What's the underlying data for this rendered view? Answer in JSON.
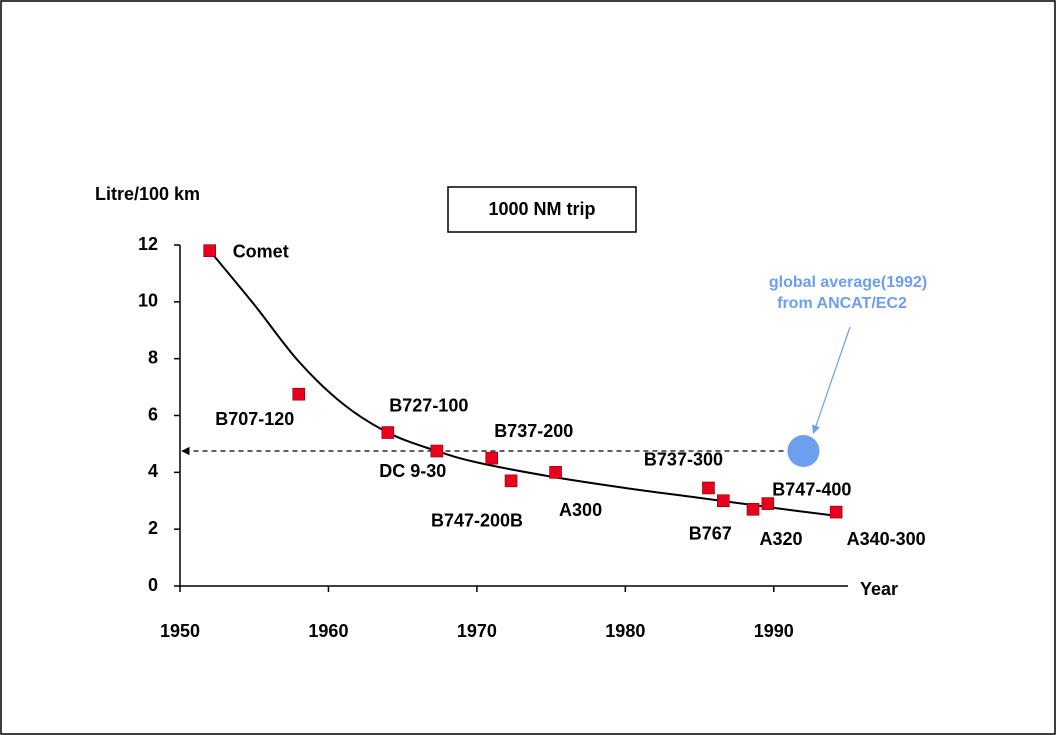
{
  "chart_data": {
    "type": "scatter",
    "y_label": "Litre/100 km",
    "x_label": "Year",
    "box_label": "1000 NM trip",
    "xlim": [
      1950,
      1995
    ],
    "xticks": [
      1950,
      1960,
      1970,
      1980,
      1990
    ],
    "ylim": [
      0,
      12
    ],
    "yticks": [
      0,
      2,
      4,
      6,
      8,
      10,
      12
    ],
    "points": {
      "color": "#e8001c",
      "labels": [
        "Comet",
        "B707-120",
        "B727-100",
        "DC 9-30",
        "B737-200",
        "B747-200B",
        "A300",
        "B737-300",
        "B767",
        "A320",
        "B747-400",
        "A340-300"
      ],
      "x": [
        1952,
        1958,
        1964,
        1967.3,
        1971,
        1972.3,
        1975.3,
        1985.6,
        1986.6,
        1988.6,
        1989.6,
        1994.2
      ],
      "y": [
        11.8,
        6.75,
        5.4,
        4.75,
        4.5,
        3.7,
        4.0,
        3.45,
        3.0,
        2.7,
        2.9,
        2.6
      ]
    },
    "trend": {
      "color": "#000000",
      "x": [
        1952,
        1955,
        1958,
        1961,
        1964,
        1967,
        1970,
        1975,
        1980,
        1985,
        1990,
        1994.5
      ],
      "y": [
        11.8,
        9.9,
        7.9,
        6.4,
        5.4,
        4.8,
        4.35,
        3.85,
        3.45,
        3.1,
        2.75,
        2.45
      ]
    },
    "reference": {
      "color": "#6e9eee",
      "x": 1992,
      "y": 4.75,
      "label_lines": [
        "global average(1992)",
        "from ANCAT/EC2"
      ]
    }
  }
}
